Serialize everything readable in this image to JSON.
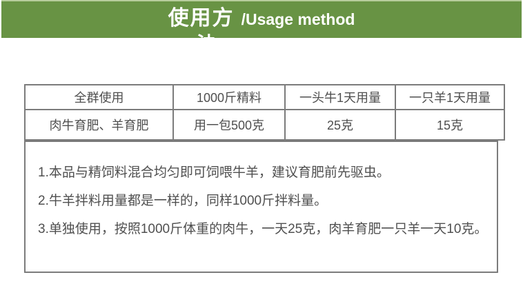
{
  "banner": {
    "title_zh": "使用方",
    "title_zh_clipped": "法",
    "title_en": "/Usage method",
    "bg_color": "#689344",
    "top_edge_color": "#b7cd9c"
  },
  "table": {
    "header": [
      "全群使用",
      "1000斤精料",
      "一头牛1天用量",
      "一只羊1天用量"
    ],
    "row": [
      "肉牛育肥、羊育肥",
      "用一包500克",
      "25克",
      "15克"
    ]
  },
  "notes": [
    "1.本品与精饲料混合均匀即可饲喂牛羊，建议育肥前先驱虫。",
    "2.牛羊拌料用量都是一样的，同样1000斤拌料量。",
    "3.单独使用，按照1000斤体重的肉牛，一天25克，肉羊育肥一只羊一天10克。"
  ],
  "colors": {
    "banner_green": "#689344",
    "border_gray": "#7b7b7b",
    "text_gray": "#4f4f4f"
  }
}
